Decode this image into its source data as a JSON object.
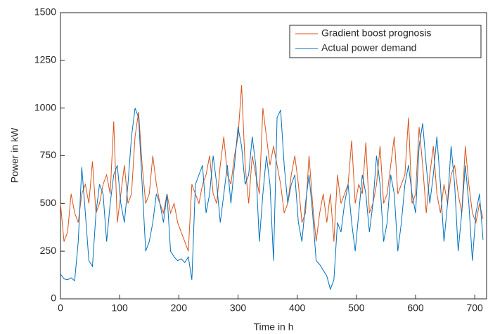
{
  "chart_data": {
    "type": "line",
    "xlabel": "Time in h",
    "ylabel": "Power in kW",
    "x": [
      0,
      6,
      12,
      18,
      24,
      30,
      36,
      42,
      48,
      54,
      60,
      66,
      72,
      78,
      84,
      90,
      96,
      102,
      108,
      114,
      120,
      126,
      132,
      138,
      144,
      150,
      156,
      162,
      168,
      174,
      180,
      186,
      192,
      198,
      204,
      210,
      216,
      222,
      228,
      234,
      240,
      246,
      252,
      258,
      264,
      270,
      276,
      282,
      288,
      294,
      300,
      306,
      312,
      318,
      324,
      330,
      336,
      342,
      348,
      354,
      360,
      366,
      372,
      378,
      384,
      390,
      396,
      402,
      408,
      414,
      420,
      426,
      432,
      438,
      444,
      450,
      456,
      462,
      468,
      474,
      480,
      486,
      492,
      498,
      504,
      510,
      516,
      522,
      528,
      534,
      540,
      546,
      552,
      558,
      564,
      570,
      576,
      582,
      588,
      594,
      600,
      606,
      612,
      618,
      624,
      630,
      636,
      642,
      648,
      654,
      660,
      666,
      672,
      678,
      684,
      690,
      696,
      702,
      708,
      714
    ],
    "series": [
      {
        "name": "Gradient boost prognosis",
        "color": "#d95319",
        "values": [
          500,
          300,
          350,
          550,
          450,
          400,
          550,
          600,
          500,
          720,
          450,
          500,
          600,
          650,
          550,
          930,
          400,
          550,
          700,
          500,
          550,
          850,
          980,
          700,
          500,
          550,
          750,
          600,
          500,
          450,
          550,
          450,
          500,
          400,
          350,
          300,
          250,
          600,
          550,
          500,
          600,
          650,
          750,
          550,
          500,
          700,
          850,
          650,
          600,
          750,
          850,
          1120,
          700,
          500,
          750,
          650,
          550,
          1000,
          850,
          700,
          800,
          700,
          600,
          450,
          500,
          650,
          750,
          600,
          400,
          450,
          750,
          500,
          300,
          450,
          550,
          400,
          550,
          300,
          650,
          500,
          550,
          600,
          830,
          500,
          600,
          550,
          820,
          450,
          500,
          600,
          800,
          500,
          550,
          700,
          850,
          550,
          600,
          650,
          950,
          500,
          550,
          900,
          700,
          450,
          650,
          800,
          550,
          450,
          600,
          500,
          650,
          700,
          550,
          450,
          800,
          600,
          450,
          400,
          500,
          420
        ]
      },
      {
        "name": "Actual power demand",
        "color": "#0072bd",
        "values": [
          130,
          105,
          100,
          110,
          95,
          300,
          690,
          450,
          200,
          170,
          450,
          600,
          550,
          300,
          500,
          650,
          700,
          500,
          400,
          600,
          850,
          1000,
          950,
          600,
          250,
          300,
          400,
          550,
          500,
          400,
          550,
          250,
          220,
          200,
          210,
          190,
          220,
          100,
          600,
          650,
          700,
          450,
          550,
          750,
          600,
          400,
          550,
          700,
          500,
          700,
          900,
          800,
          600,
          650,
          850,
          700,
          300,
          550,
          750,
          600,
          200,
          950,
          990,
          700,
          500,
          600,
          650,
          400,
          300,
          500,
          650,
          450,
          200,
          180,
          150,
          120,
          50,
          100,
          400,
          350,
          500,
          600,
          400,
          250,
          450,
          650,
          550,
          350,
          500,
          750,
          600,
          300,
          400,
          650,
          550,
          250,
          400,
          600,
          700,
          550,
          450,
          800,
          920,
          700,
          500,
          650,
          850,
          600,
          300,
          500,
          800,
          600,
          250,
          450,
          700,
          500,
          200,
          450,
          550,
          310
        ]
      }
    ],
    "xlim": [
      0,
      720
    ],
    "xticks": [
      0,
      100,
      200,
      300,
      400,
      500,
      600,
      700
    ],
    "ylim": [
      0,
      1500
    ],
    "yticks": [
      0,
      250,
      500,
      750,
      1000,
      1250,
      1500
    ],
    "legend": "top-right"
  }
}
